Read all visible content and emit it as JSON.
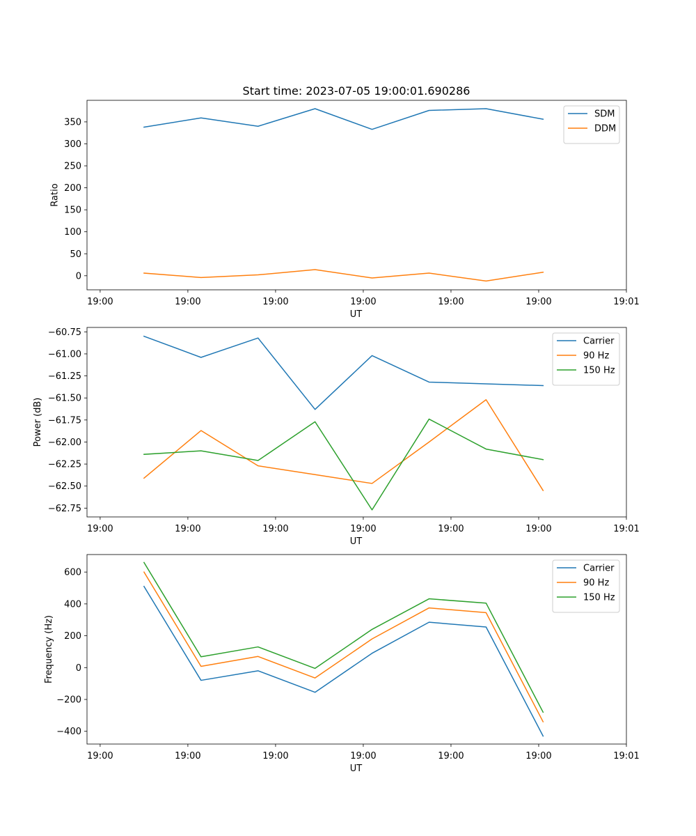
{
  "figure_title": "Start time: 2023-07-05 19:00:01.690286",
  "colors": {
    "blue": "#1f77b4",
    "orange": "#ff7f0e",
    "green": "#2ca02c",
    "axis": "#000000",
    "legend_border": "#cccccc"
  },
  "chart_data": [
    {
      "type": "line",
      "title": "Start time: 2023-07-05 19:00:01.690286",
      "xlabel": "UT",
      "ylabel": "Ratio",
      "x_tick_labels": [
        "19:00",
        "19:00",
        "19:00",
        "19:00",
        "19:00",
        "19:00",
        "19:01"
      ],
      "x_tick_positions": [
        0,
        1,
        2,
        3,
        4,
        5,
        6
      ],
      "xlim": [
        -0.15,
        6.0
      ],
      "x": [
        0.5,
        1.15,
        1.8,
        2.45,
        3.1,
        3.75,
        4.4,
        5.05
      ],
      "ylim": [
        -32,
        399
      ],
      "y_ticks": [
        0,
        50,
        100,
        150,
        200,
        250,
        300,
        350
      ],
      "y_tick_labels": [
        "0",
        "50",
        "100",
        "150",
        "200",
        "250",
        "300",
        "350"
      ],
      "legend_position": "top-right",
      "series": [
        {
          "name": "SDM",
          "color": "#1f77b4",
          "values": [
            338,
            359,
            340,
            380,
            333,
            376,
            380,
            356
          ]
        },
        {
          "name": "DDM",
          "color": "#ff7f0e",
          "values": [
            6,
            -4,
            2,
            14,
            -5,
            6,
            -12,
            8
          ]
        }
      ]
    },
    {
      "type": "line",
      "title": "",
      "xlabel": "UT",
      "ylabel": "Power (dB)",
      "x_tick_labels": [
        "19:00",
        "19:00",
        "19:00",
        "19:00",
        "19:00",
        "19:00",
        "19:01"
      ],
      "x_tick_positions": [
        0,
        1,
        2,
        3,
        4,
        5,
        6
      ],
      "xlim": [
        -0.15,
        6.0
      ],
      "x": [
        0.5,
        1.15,
        1.8,
        2.45,
        3.1,
        3.75,
        4.4,
        5.05
      ],
      "ylim": [
        -62.85,
        -60.7
      ],
      "y_ticks": [
        -62.75,
        -62.5,
        -62.25,
        -62.0,
        -61.75,
        -61.5,
        -61.25,
        -61.0,
        -60.75
      ],
      "y_tick_labels": [
        "−62.75",
        "−62.50",
        "−62.25",
        "−62.00",
        "−61.75",
        "−61.50",
        "−61.25",
        "−61.00",
        "−60.75"
      ],
      "legend_position": "top-right",
      "series": [
        {
          "name": "Carrier",
          "color": "#1f77b4",
          "values": [
            -60.8,
            -61.04,
            -60.82,
            -61.63,
            -61.02,
            -61.32,
            -61.34,
            -61.36
          ]
        },
        {
          "name": "90 Hz",
          "color": "#ff7f0e",
          "values": [
            -62.41,
            -61.87,
            -62.27,
            -62.37,
            -62.47,
            -62.0,
            -61.52,
            -62.55
          ]
        },
        {
          "name": "150 Hz",
          "color": "#2ca02c",
          "values": [
            -62.14,
            -62.1,
            -62.21,
            -61.77,
            -62.77,
            -61.74,
            -62.08,
            -62.2
          ]
        }
      ]
    },
    {
      "type": "line",
      "title": "",
      "xlabel": "UT",
      "ylabel": "Frequency (Hz)",
      "x_tick_labels": [
        "19:00",
        "19:00",
        "19:00",
        "19:00",
        "19:00",
        "19:00",
        "19:01"
      ],
      "x_tick_positions": [
        0,
        1,
        2,
        3,
        4,
        5,
        6
      ],
      "xlim": [
        -0.15,
        6.0
      ],
      "x": [
        0.5,
        1.15,
        1.8,
        2.45,
        3.1,
        3.75,
        4.4,
        5.05
      ],
      "ylim": [
        -480,
        710
      ],
      "y_ticks": [
        -400,
        -200,
        0,
        200,
        400,
        600
      ],
      "y_tick_labels": [
        "−400",
        "−200",
        "0",
        "200",
        "400",
        "600"
      ],
      "legend_position": "top-right",
      "series": [
        {
          "name": "Carrier",
          "color": "#1f77b4",
          "values": [
            510,
            -80,
            -20,
            -155,
            90,
            285,
            255,
            -430
          ]
        },
        {
          "name": "90 Hz",
          "color": "#ff7f0e",
          "values": [
            600,
            8,
            70,
            -65,
            180,
            375,
            345,
            -340
          ]
        },
        {
          "name": "150 Hz",
          "color": "#2ca02c",
          "values": [
            660,
            68,
            130,
            -5,
            240,
            432,
            405,
            -280
          ]
        }
      ]
    }
  ]
}
